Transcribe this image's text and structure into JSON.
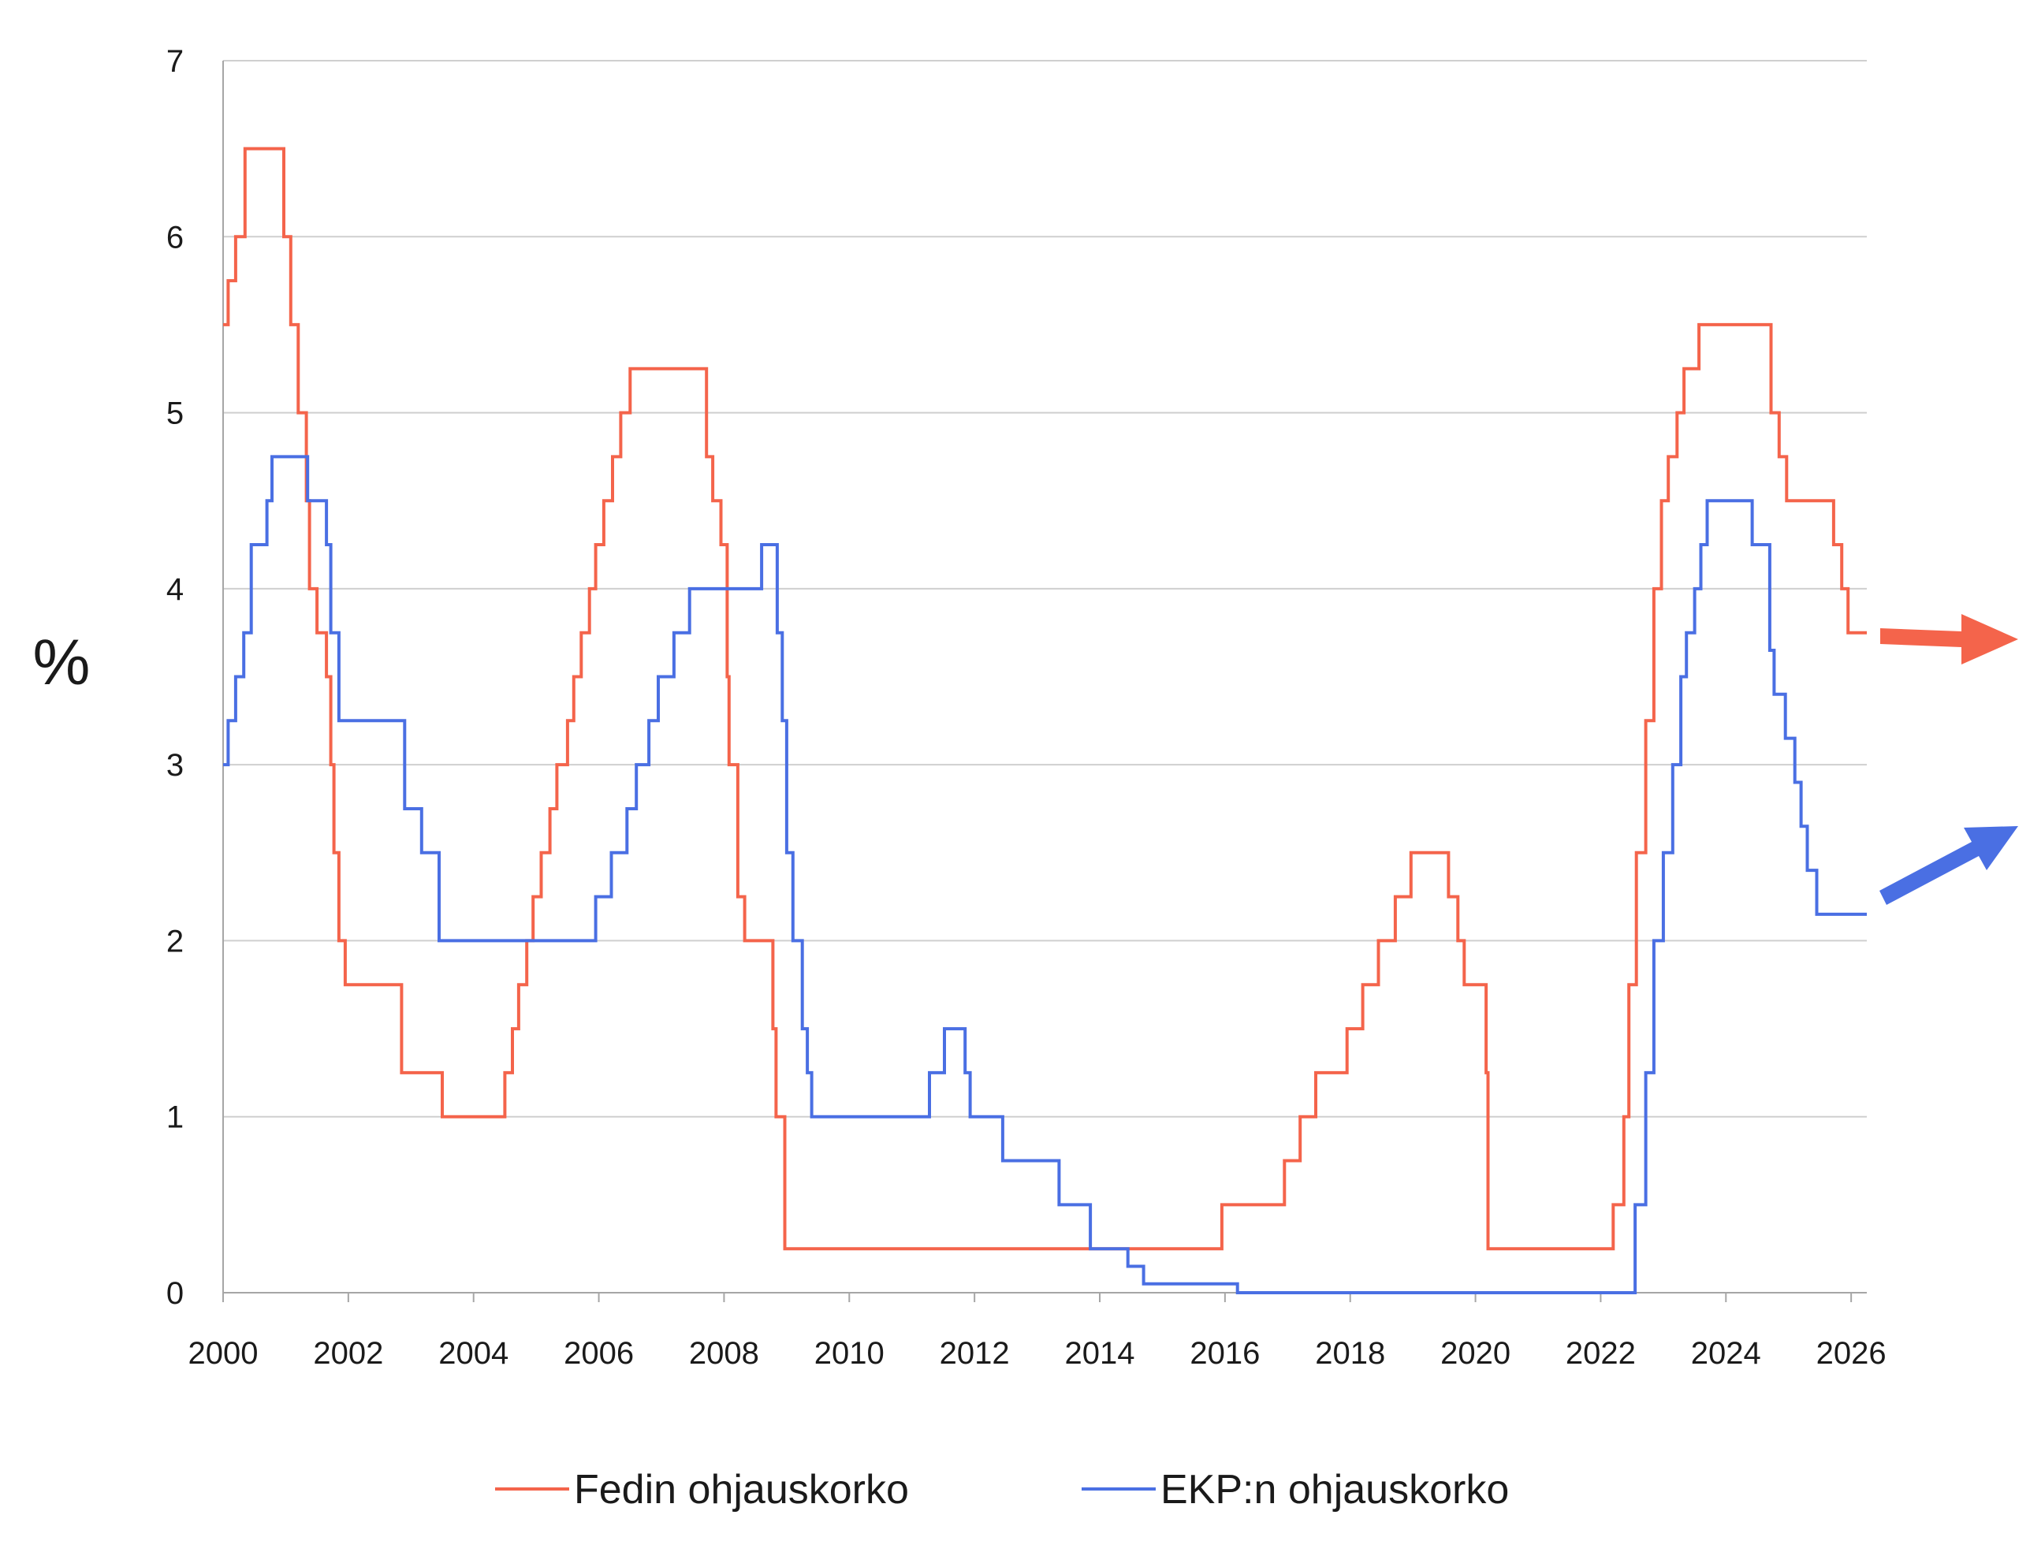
{
  "chart_data": {
    "type": "line",
    "ylabel": "%",
    "xlabel": "",
    "xlim": [
      2000,
      2026.25
    ],
    "ylim": [
      0,
      7
    ],
    "x_ticks": [
      "2000",
      "2002",
      "2004",
      "2006",
      "2008",
      "2010",
      "2012",
      "2014",
      "2016",
      "2018",
      "2020",
      "2022",
      "2024",
      "2026"
    ],
    "y_ticks": [
      "0",
      "1",
      "2",
      "3",
      "4",
      "5",
      "6",
      "7"
    ],
    "grid": "horizontal",
    "legend_position": "bottom",
    "annotations": [
      {
        "type": "arrow",
        "series": "Fedin ohjauskorko",
        "direction": "right",
        "color": "#f4644b"
      },
      {
        "type": "arrow",
        "series": "EKP:n ohjauskorko",
        "direction": "up-right",
        "color": "#4a6fe3"
      }
    ],
    "series": [
      {
        "name": "Fedin ohjauskorko",
        "color": "#f4644b",
        "step": true,
        "points": [
          [
            2000.0,
            5.5
          ],
          [
            2000.08,
            5.75
          ],
          [
            2000.2,
            6.0
          ],
          [
            2000.35,
            6.5
          ],
          [
            2000.97,
            6.0
          ],
          [
            2001.08,
            5.5
          ],
          [
            2001.2,
            5.0
          ],
          [
            2001.33,
            4.5
          ],
          [
            2001.38,
            4.0
          ],
          [
            2001.5,
            3.75
          ],
          [
            2001.65,
            3.5
          ],
          [
            2001.72,
            3.0
          ],
          [
            2001.77,
            2.5
          ],
          [
            2001.85,
            2.0
          ],
          [
            2001.95,
            1.75
          ],
          [
            2002.85,
            1.25
          ],
          [
            2003.5,
            1.0
          ],
          [
            2004.5,
            1.25
          ],
          [
            2004.62,
            1.5
          ],
          [
            2004.72,
            1.75
          ],
          [
            2004.85,
            2.0
          ],
          [
            2004.95,
            2.25
          ],
          [
            2005.08,
            2.5
          ],
          [
            2005.22,
            2.75
          ],
          [
            2005.33,
            3.0
          ],
          [
            2005.5,
            3.25
          ],
          [
            2005.6,
            3.5
          ],
          [
            2005.72,
            3.75
          ],
          [
            2005.85,
            4.0
          ],
          [
            2005.95,
            4.25
          ],
          [
            2006.08,
            4.5
          ],
          [
            2006.22,
            4.75
          ],
          [
            2006.35,
            5.0
          ],
          [
            2006.5,
            5.25
          ],
          [
            2007.72,
            4.75
          ],
          [
            2007.82,
            4.5
          ],
          [
            2007.95,
            4.25
          ],
          [
            2008.05,
            3.5
          ],
          [
            2008.08,
            3.0
          ],
          [
            2008.22,
            2.25
          ],
          [
            2008.33,
            2.0
          ],
          [
            2008.78,
            1.5
          ],
          [
            2008.83,
            1.0
          ],
          [
            2008.97,
            0.25
          ],
          [
            2015.95,
            0.5
          ],
          [
            2016.95,
            0.75
          ],
          [
            2017.2,
            1.0
          ],
          [
            2017.45,
            1.25
          ],
          [
            2017.95,
            1.5
          ],
          [
            2018.2,
            1.75
          ],
          [
            2018.45,
            2.0
          ],
          [
            2018.72,
            2.25
          ],
          [
            2018.97,
            2.5
          ],
          [
            2019.57,
            2.25
          ],
          [
            2019.72,
            2.0
          ],
          [
            2019.82,
            1.75
          ],
          [
            2020.17,
            1.25
          ],
          [
            2020.2,
            0.25
          ],
          [
            2022.2,
            0.5
          ],
          [
            2022.37,
            1.0
          ],
          [
            2022.45,
            1.75
          ],
          [
            2022.57,
            2.5
          ],
          [
            2022.72,
            3.25
          ],
          [
            2022.85,
            4.0
          ],
          [
            2022.97,
            4.5
          ],
          [
            2023.08,
            4.75
          ],
          [
            2023.22,
            5.0
          ],
          [
            2023.33,
            5.25
          ],
          [
            2023.57,
            5.5
          ],
          [
            2024.72,
            5.0
          ],
          [
            2024.85,
            4.75
          ],
          [
            2024.97,
            4.5
          ],
          [
            2025.72,
            4.25
          ],
          [
            2025.85,
            4.0
          ],
          [
            2025.95,
            3.75
          ],
          [
            2026.25,
            3.75
          ]
        ]
      },
      {
        "name": "EKP:n ohjauskorko",
        "color": "#4a6fe3",
        "step": true,
        "points": [
          [
            2000.0,
            3.0
          ],
          [
            2000.08,
            3.25
          ],
          [
            2000.2,
            3.5
          ],
          [
            2000.33,
            3.75
          ],
          [
            2000.45,
            4.25
          ],
          [
            2000.7,
            4.5
          ],
          [
            2000.78,
            4.75
          ],
          [
            2001.35,
            4.5
          ],
          [
            2001.65,
            4.25
          ],
          [
            2001.72,
            3.75
          ],
          [
            2001.85,
            3.25
          ],
          [
            2002.9,
            2.75
          ],
          [
            2003.17,
            2.5
          ],
          [
            2003.45,
            2.0
          ],
          [
            2005.95,
            2.25
          ],
          [
            2006.2,
            2.5
          ],
          [
            2006.45,
            2.75
          ],
          [
            2006.6,
            3.0
          ],
          [
            2006.8,
            3.25
          ],
          [
            2006.95,
            3.5
          ],
          [
            2007.2,
            3.75
          ],
          [
            2007.45,
            4.0
          ],
          [
            2008.6,
            4.25
          ],
          [
            2008.85,
            3.75
          ],
          [
            2008.93,
            3.25
          ],
          [
            2009.0,
            2.5
          ],
          [
            2009.1,
            2.0
          ],
          [
            2009.25,
            1.5
          ],
          [
            2009.33,
            1.25
          ],
          [
            2009.4,
            1.0
          ],
          [
            2011.28,
            1.25
          ],
          [
            2011.52,
            1.5
          ],
          [
            2011.85,
            1.25
          ],
          [
            2011.93,
            1.0
          ],
          [
            2012.45,
            0.75
          ],
          [
            2013.35,
            0.5
          ],
          [
            2013.85,
            0.25
          ],
          [
            2014.45,
            0.15
          ],
          [
            2014.7,
            0.05
          ],
          [
            2016.2,
            0.0
          ],
          [
            2022.55,
            0.5
          ],
          [
            2022.72,
            1.25
          ],
          [
            2022.85,
            2.0
          ],
          [
            2023.0,
            2.5
          ],
          [
            2023.15,
            3.0
          ],
          [
            2023.28,
            3.5
          ],
          [
            2023.37,
            3.75
          ],
          [
            2023.5,
            4.0
          ],
          [
            2023.6,
            4.25
          ],
          [
            2023.7,
            4.5
          ],
          [
            2024.42,
            4.25
          ],
          [
            2024.7,
            3.65
          ],
          [
            2024.77,
            3.4
          ],
          [
            2024.95,
            3.15
          ],
          [
            2025.1,
            2.9
          ],
          [
            2025.2,
            2.65
          ],
          [
            2025.3,
            2.4
          ],
          [
            2025.45,
            2.15
          ],
          [
            2026.25,
            2.15
          ]
        ]
      }
    ]
  }
}
